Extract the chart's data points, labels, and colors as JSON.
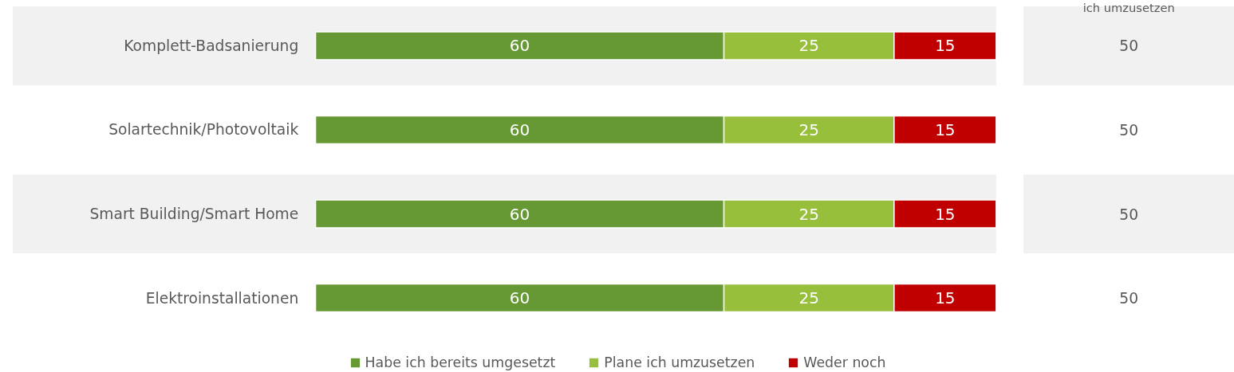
{
  "chart_data": {
    "type": "bar",
    "orientation": "horizontal",
    "stacked": true,
    "data_labels": true,
    "legend": "bottom",
    "categories": [
      "Komplett-Badsanierung",
      "Solartechnik/Photovoltaik",
      "Smart Building/Smart Home",
      "Elektroinstallationen"
    ],
    "series": [
      {
        "name": "Habe ich bereits umgesetzt",
        "color": "#669934",
        "values": [
          60,
          60,
          60,
          60
        ]
      },
      {
        "name": "Plane ich umzusetzen",
        "color": "#97bf3b",
        "values": [
          25,
          25,
          25,
          25
        ]
      },
      {
        "name": "Weder noch",
        "color": "#c00000",
        "values": [
          15,
          15,
          15,
          15
        ]
      }
    ],
    "bands": [
      {
        "axis": "y",
        "from": "Komplett-Badsanierung",
        "to": "Komplett-Badsanierung",
        "color": "#f1f1f1"
      },
      {
        "axis": "y",
        "from": "Smart Building/Smart Home",
        "to": "Smart Building/Smart Home",
        "color": "#f1f1f1"
      }
    ],
    "annotations": [
      "ich umzusetzen",
      "50",
      "50",
      "50",
      "50"
    ]
  }
}
